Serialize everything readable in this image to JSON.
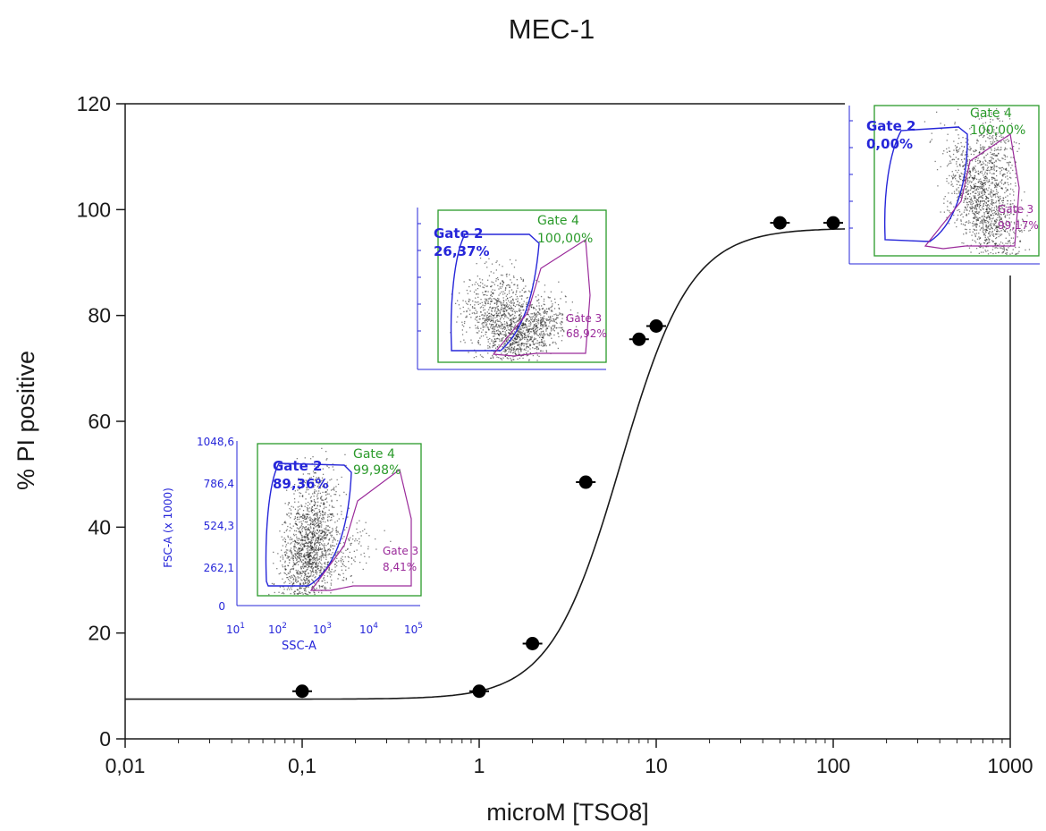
{
  "chart_data": {
    "type": "scatter",
    "title": "MEC-1",
    "xlabel": "microM [TSO8]",
    "ylabel": "% PI positive",
    "x_scale": "log",
    "xlim": [
      0.01,
      1000
    ],
    "ylim": [
      0,
      120
    ],
    "x_ticks": [
      0.01,
      0.1,
      1,
      10,
      100,
      1000
    ],
    "x_tick_labels": [
      "0,01",
      "0,1",
      "1",
      "10",
      "100",
      "1000"
    ],
    "y_ticks": [
      0,
      20,
      40,
      60,
      80,
      100,
      120
    ],
    "y_tick_labels": [
      "0",
      "20",
      "40",
      "60",
      "80",
      "100",
      "120"
    ],
    "grid": false,
    "points": [
      {
        "x": 0.1,
        "y": 9
      },
      {
        "x": 1,
        "y": 9
      },
      {
        "x": 2,
        "y": 18
      },
      {
        "x": 4,
        "y": 48.5
      },
      {
        "x": 8,
        "y": 75.5
      },
      {
        "x": 10,
        "y": 78
      },
      {
        "x": 50,
        "y": 97.5
      },
      {
        "x": 100,
        "y": 97.5
      }
    ],
    "fit_curve": {
      "bottom": 7.5,
      "top": 96.5,
      "ec50": 6.3,
      "hill": 2.2
    }
  },
  "insets": [
    {
      "gate2_label": "Gate 2",
      "gate2_value": "89,36%",
      "gate4_label": "Gate 4",
      "gate4_value": "99,98%",
      "gate3_label": "Gate 3",
      "gate3_value": "8,41%",
      "y_axis_label": "FSC-A (x 1000)",
      "x_axis_label": "SSC-A",
      "y_ticks": [
        "1048,6",
        "786,4",
        "524,3",
        "262,1",
        "0"
      ],
      "x_ticks": [
        "10",
        "10",
        "10",
        "10",
        "10"
      ],
      "x_tick_exp": [
        "1",
        "2",
        "3",
        "4",
        "5"
      ]
    },
    {
      "gate2_label": "Gate 2",
      "gate2_value": "26,37%",
      "gate4_label": "Gate 4",
      "gate4_value": "100,00%",
      "gate3_label": "Gate 3",
      "gate3_value": "68,92%"
    },
    {
      "gate2_label": "Gate 2",
      "gate2_value": "0,00%",
      "gate4_label": "Gate 4",
      "gate4_value": "100,00%",
      "gate3_label": "Gate 3",
      "gate3_value": "99,17%"
    }
  ],
  "colors": {
    "blue": "#2626d9",
    "green": "#2a9a2a",
    "purple": "#9a2a9a",
    "axis": "#1a1a1a"
  }
}
